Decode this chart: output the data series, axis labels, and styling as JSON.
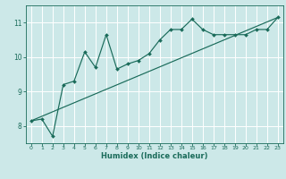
{
  "xlabel": "Humidex (Indice chaleur)",
  "bg_color": "#cce8e8",
  "grid_color": "#ffffff",
  "line_color": "#1a6b5a",
  "xlim": [
    -0.5,
    23.5
  ],
  "ylim": [
    7.5,
    11.5
  ],
  "yticks": [
    8,
    9,
    10,
    11
  ],
  "xticks": [
    0,
    1,
    2,
    3,
    4,
    5,
    6,
    7,
    8,
    9,
    10,
    11,
    12,
    13,
    14,
    15,
    16,
    17,
    18,
    19,
    20,
    21,
    22,
    23
  ],
  "data_x": [
    0,
    1,
    2,
    3,
    4,
    5,
    6,
    7,
    8,
    9,
    10,
    11,
    12,
    13,
    14,
    15,
    16,
    17,
    18,
    19,
    20,
    21,
    22,
    23
  ],
  "data_y": [
    8.15,
    8.2,
    7.7,
    9.2,
    9.3,
    10.15,
    9.7,
    10.65,
    9.65,
    9.8,
    9.9,
    10.1,
    10.5,
    10.8,
    10.8,
    11.1,
    10.8,
    10.65,
    10.65,
    10.65,
    10.65,
    10.8,
    10.8,
    11.15
  ],
  "trend_x": [
    0,
    23
  ],
  "trend_y": [
    8.15,
    11.15
  ]
}
